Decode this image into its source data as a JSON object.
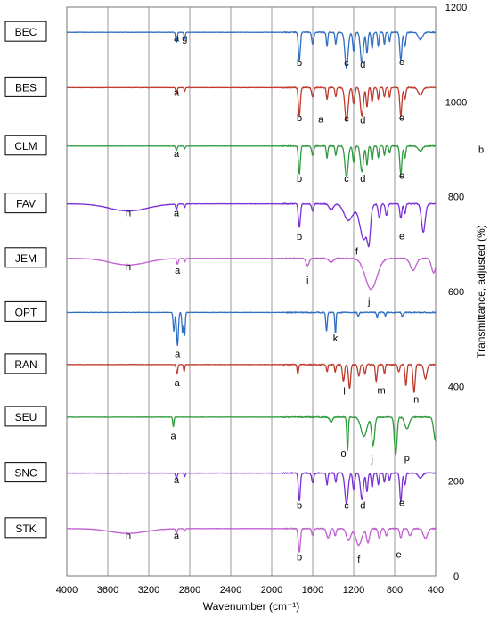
{
  "chart_data": {
    "type": "line",
    "title": "",
    "xlabel": "Wavenumber (cm⁻¹)",
    "ylabel": "Transmittance, adjusted (%)",
    "xlim": [
      4000,
      400
    ],
    "ylim": [
      0,
      1200
    ],
    "x_ticks": [
      4000,
      3600,
      3200,
      2800,
      2400,
      2000,
      1600,
      1200,
      800,
      400
    ],
    "y_ticks": [
      0,
      200,
      400,
      600,
      800,
      1000,
      1200
    ],
    "grid": "vertical",
    "legend": "boxed labels at left of each trace",
    "series": [
      {
        "name": "BEC",
        "color": "#2f6fc4",
        "baseline": 1147,
        "bands": [
          [
            2930,
            22,
            10
          ],
          [
            2850,
            15,
            8
          ],
          [
            1730,
            60,
            13
          ],
          [
            1600,
            25,
            14
          ],
          [
            1460,
            30,
            10
          ],
          [
            1375,
            25,
            10
          ],
          [
            1270,
            75,
            22
          ],
          [
            1200,
            40,
            14
          ],
          [
            1120,
            65,
            20
          ],
          [
            1070,
            45,
            12
          ],
          [
            1020,
            35,
            12
          ],
          [
            960,
            30,
            10
          ],
          [
            900,
            25,
            10
          ],
          [
            850,
            20,
            10
          ],
          [
            740,
            60,
            14
          ],
          [
            700,
            30,
            12
          ],
          [
            550,
            15,
            30
          ]
        ],
        "peaks": [
          {
            "x": 2930,
            "y": 1135,
            "label": "a"
          },
          {
            "x": 2850,
            "y": 1135,
            "label": "g"
          },
          {
            "x": 1730,
            "y": 1083,
            "label": "b"
          },
          {
            "x": 1270,
            "y": 1083,
            "label": "c"
          },
          {
            "x": 1110,
            "y": 1080,
            "label": "d"
          },
          {
            "x": 730,
            "y": 1085,
            "label": "e"
          }
        ]
      },
      {
        "name": "BES",
        "color": "#c0392b",
        "baseline": 1030,
        "bands": [
          [
            2930,
            12,
            10
          ],
          [
            2850,
            8,
            8
          ],
          [
            1730,
            60,
            13
          ],
          [
            1600,
            20,
            14
          ],
          [
            1460,
            25,
            10
          ],
          [
            1375,
            20,
            10
          ],
          [
            1270,
            70,
            22
          ],
          [
            1200,
            35,
            14
          ],
          [
            1120,
            60,
            20
          ],
          [
            1070,
            40,
            12
          ],
          [
            1020,
            30,
            12
          ],
          [
            960,
            25,
            10
          ],
          [
            900,
            20,
            10
          ],
          [
            850,
            20,
            10
          ],
          [
            740,
            60,
            14
          ],
          [
            700,
            25,
            12
          ],
          [
            550,
            15,
            30
          ]
        ],
        "peaks": [
          {
            "x": 2930,
            "y": 1020,
            "label": "a"
          },
          {
            "x": 1730,
            "y": 967,
            "label": "b"
          },
          {
            "x": 1520,
            "y": 964,
            "label": "a"
          },
          {
            "x": 1270,
            "y": 966,
            "label": "c"
          },
          {
            "x": 1110,
            "y": 962,
            "label": "d"
          },
          {
            "x": 730,
            "y": 968,
            "label": "e"
          }
        ]
      },
      {
        "name": "CLM",
        "color": "#2e9a3e",
        "baseline": 907,
        "bands": [
          [
            2930,
            10,
            10
          ],
          [
            2850,
            6,
            8
          ],
          [
            1730,
            60,
            13
          ],
          [
            1600,
            20,
            14
          ],
          [
            1460,
            25,
            10
          ],
          [
            1375,
            20,
            10
          ],
          [
            1270,
            65,
            22
          ],
          [
            1200,
            35,
            14
          ],
          [
            1120,
            55,
            20
          ],
          [
            1070,
            40,
            12
          ],
          [
            1020,
            30,
            12
          ],
          [
            960,
            25,
            10
          ],
          [
            900,
            20,
            10
          ],
          [
            850,
            15,
            10
          ],
          [
            740,
            60,
            14
          ],
          [
            700,
            25,
            12
          ],
          [
            550,
            10,
            30
          ]
        ],
        "peaks": [
          {
            "x": 2930,
            "y": 892,
            "label": "a"
          },
          {
            "x": 1730,
            "y": 839,
            "label": "b"
          },
          {
            "x": 1270,
            "y": 839,
            "label": "c"
          },
          {
            "x": 1110,
            "y": 839,
            "label": "d"
          },
          {
            "x": 730,
            "y": 845,
            "label": "e"
          }
        ]
      },
      {
        "name": "FAV",
        "color": "#7a2fd6",
        "baseline": 785,
        "bands": [
          [
            3400,
            15,
            260
          ],
          [
            2930,
            12,
            10
          ],
          [
            2850,
            8,
            8
          ],
          [
            1730,
            50,
            14
          ],
          [
            1600,
            15,
            14
          ],
          [
            1420,
            12,
            30
          ],
          [
            1250,
            35,
            60
          ],
          [
            1100,
            75,
            55
          ],
          [
            1050,
            55,
            20
          ],
          [
            950,
            30,
            15
          ],
          [
            880,
            25,
            15
          ],
          [
            740,
            30,
            14
          ],
          [
            700,
            20,
            12
          ],
          [
            520,
            60,
            25
          ]
        ],
        "peaks": [
          {
            "x": 3400,
            "y": 766,
            "label": "h"
          },
          {
            "x": 2930,
            "y": 766,
            "label": "a"
          },
          {
            "x": 1730,
            "y": 717,
            "label": "b"
          },
          {
            "x": 1170,
            "y": 686,
            "label": "f"
          },
          {
            "x": 730,
            "y": 718,
            "label": "e"
          }
        ]
      },
      {
        "name": "JEM",
        "color": "#c05fd0",
        "baseline": 670,
        "bands": [
          [
            3400,
            14,
            250
          ],
          [
            2920,
            12,
            12
          ],
          [
            2850,
            8,
            8
          ],
          [
            1650,
            15,
            20
          ],
          [
            1420,
            8,
            30
          ],
          [
            1030,
            65,
            80
          ],
          [
            620,
            25,
            40
          ],
          [
            420,
            30,
            30
          ]
        ],
        "peaks": [
          {
            "x": 3400,
            "y": 653,
            "label": "h"
          },
          {
            "x": 2920,
            "y": 645,
            "label": "a"
          },
          {
            "x": 1650,
            "y": 624,
            "label": "i"
          },
          {
            "x": 1050,
            "y": 580,
            "label": "j"
          }
        ]
      },
      {
        "name": "OPT",
        "color": "#2f6fc4",
        "baseline": 556,
        "bands": [
          [
            2955,
            40,
            10
          ],
          [
            2920,
            70,
            12
          ],
          [
            2870,
            45,
            10
          ],
          [
            2850,
            50,
            8
          ],
          [
            1465,
            40,
            10
          ],
          [
            1378,
            45,
            8
          ],
          [
            1155,
            8,
            10
          ],
          [
            970,
            12,
            8
          ],
          [
            890,
            8,
            8
          ],
          [
            725,
            10,
            10
          ]
        ],
        "peaks": [
          {
            "x": 2920,
            "y": 469,
            "label": "a"
          },
          {
            "x": 1378,
            "y": 502,
            "label": "k"
          }
        ]
      },
      {
        "name": "RAN",
        "color": "#c0392b",
        "baseline": 446,
        "bands": [
          [
            2925,
            20,
            10
          ],
          [
            2855,
            15,
            8
          ],
          [
            1745,
            20,
            10
          ],
          [
            1460,
            15,
            10
          ],
          [
            1380,
            15,
            10
          ],
          [
            1300,
            35,
            14
          ],
          [
            1240,
            50,
            14
          ],
          [
            1150,
            25,
            14
          ],
          [
            1090,
            20,
            12
          ],
          [
            980,
            35,
            12
          ],
          [
            900,
            20,
            10
          ],
          [
            760,
            15,
            14
          ],
          [
            690,
            45,
            12
          ],
          [
            610,
            60,
            14
          ],
          [
            500,
            30,
            20
          ]
        ],
        "peaks": [
          {
            "x": 2925,
            "y": 408,
            "label": "a"
          },
          {
            "x": 1290,
            "y": 390,
            "label": "l"
          },
          {
            "x": 930,
            "y": 392,
            "label": "m"
          },
          {
            "x": 590,
            "y": 373,
            "label": "n"
          }
        ]
      },
      {
        "name": "SEU",
        "color": "#2e9a3e",
        "baseline": 335,
        "bands": [
          [
            2960,
            20,
            8
          ],
          [
            1420,
            10,
            20
          ],
          [
            1260,
            70,
            10
          ],
          [
            1100,
            40,
            40
          ],
          [
            1010,
            60,
            20
          ],
          [
            790,
            80,
            18
          ],
          [
            680,
            25,
            30
          ],
          [
            400,
            50,
            25
          ]
        ],
        "peaks": [
          {
            "x": 2960,
            "y": 296,
            "label": "a"
          },
          {
            "x": 1300,
            "y": 260,
            "label": "o"
          },
          {
            "x": 1020,
            "y": 248,
            "label": "j"
          },
          {
            "x": 680,
            "y": 250,
            "label": "p"
          }
        ]
      },
      {
        "name": "SNC",
        "color": "#7a2fd6",
        "baseline": 217,
        "bands": [
          [
            2930,
            12,
            10
          ],
          [
            2850,
            8,
            8
          ],
          [
            1730,
            60,
            13
          ],
          [
            1600,
            20,
            14
          ],
          [
            1460,
            25,
            10
          ],
          [
            1375,
            20,
            10
          ],
          [
            1270,
            65,
            22
          ],
          [
            1200,
            35,
            14
          ],
          [
            1120,
            55,
            20
          ],
          [
            1070,
            40,
            12
          ],
          [
            1020,
            30,
            12
          ],
          [
            960,
            25,
            10
          ],
          [
            900,
            20,
            10
          ],
          [
            850,
            15,
            10
          ],
          [
            740,
            60,
            14
          ],
          [
            700,
            25,
            12
          ],
          [
            550,
            10,
            30
          ]
        ],
        "peaks": [
          {
            "x": 2930,
            "y": 203,
            "label": "a"
          },
          {
            "x": 1730,
            "y": 150,
            "label": "b"
          },
          {
            "x": 1270,
            "y": 150,
            "label": "c"
          },
          {
            "x": 1110,
            "y": 150,
            "label": "d"
          },
          {
            "x": 730,
            "y": 155,
            "label": "e"
          }
        ]
      },
      {
        "name": "STK",
        "color": "#c05fd0",
        "baseline": 100,
        "bands": [
          [
            3400,
            10,
            250
          ],
          [
            2930,
            10,
            10
          ],
          [
            2850,
            6,
            8
          ],
          [
            1730,
            50,
            14
          ],
          [
            1600,
            15,
            14
          ],
          [
            1450,
            20,
            20
          ],
          [
            1380,
            15,
            12
          ],
          [
            1250,
            25,
            30
          ],
          [
            1150,
            35,
            40
          ],
          [
            1060,
            30,
            20
          ],
          [
            950,
            20,
            15
          ],
          [
            880,
            15,
            15
          ],
          [
            740,
            20,
            14
          ],
          [
            650,
            15,
            20
          ],
          [
            500,
            20,
            30
          ]
        ],
        "peaks": [
          {
            "x": 3400,
            "y": 86,
            "label": "h"
          },
          {
            "x": 2930,
            "y": 86,
            "label": "a"
          },
          {
            "x": 1730,
            "y": 40,
            "label": "b"
          },
          {
            "x": 1150,
            "y": 36,
            "label": "f"
          },
          {
            "x": 760,
            "y": 46,
            "label": "e"
          }
        ]
      }
    ],
    "side_annotations": [
      {
        "y": 900,
        "label": "b"
      }
    ]
  }
}
